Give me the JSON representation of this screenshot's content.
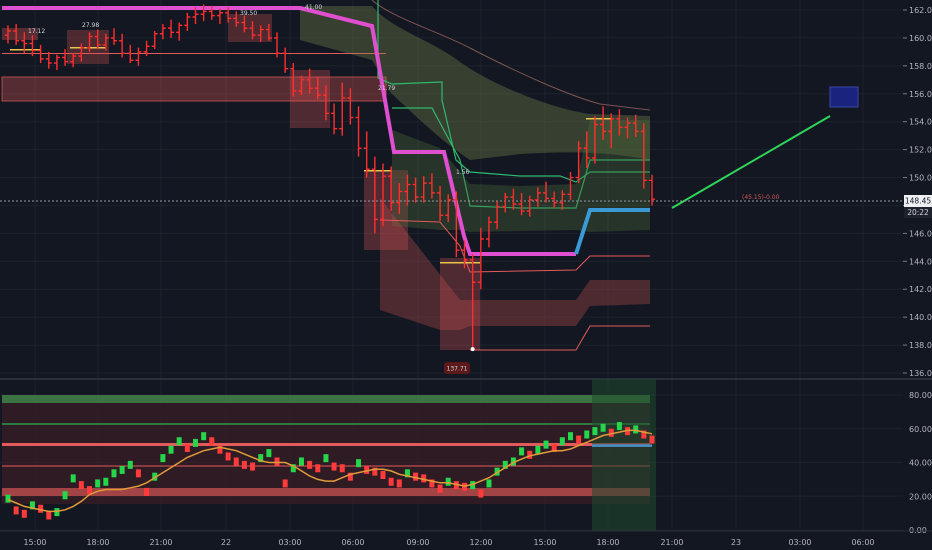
{
  "chart_data": [
    {
      "type": "candlestick",
      "panel": "price",
      "y_ticks": [
        "162.00",
        "160.00",
        "158.00",
        "156.00",
        "154.00",
        "152.00",
        "150.00",
        "148.00",
        "146.00",
        "144.00",
        "142.00",
        "140.00",
        "138.00",
        "136.00"
      ],
      "ylim": [
        136,
        162.6
      ],
      "current_price": "148.45",
      "countdown": "20:22",
      "price_line_label": "(45.15)-0.00",
      "annotations": [
        "17.12",
        "27.98",
        "39.50",
        "41.00",
        "21.79",
        "1.56",
        "137.71"
      ],
      "candles": [
        [
          160.2,
          160.9,
          159.6,
          160.5
        ],
        [
          160.5,
          161.0,
          159.5,
          159.8
        ],
        [
          159.8,
          160.4,
          158.9,
          159.6
        ],
        [
          159.6,
          160.2,
          158.7,
          159.1
        ],
        [
          159.1,
          159.5,
          158.2,
          158.5
        ],
        [
          158.5,
          159.0,
          157.8,
          158.2
        ],
        [
          158.2,
          158.8,
          157.7,
          158.6
        ],
        [
          158.6,
          159.2,
          158.0,
          158.3
        ],
        [
          158.3,
          158.9,
          157.9,
          158.7
        ],
        [
          158.7,
          159.6,
          158.3,
          159.3
        ],
        [
          159.3,
          160.4,
          159.0,
          160.1
        ],
        [
          160.1,
          160.6,
          159.2,
          159.5
        ],
        [
          159.5,
          160.3,
          159.1,
          160.0
        ],
        [
          160.0,
          160.7,
          159.5,
          159.8
        ],
        [
          159.8,
          160.3,
          158.6,
          158.9
        ],
        [
          158.9,
          159.5,
          158.2,
          158.4
        ],
        [
          158.4,
          159.3,
          158.0,
          159.0
        ],
        [
          159.0,
          159.8,
          158.7,
          159.4
        ],
        [
          159.4,
          160.5,
          159.2,
          160.3
        ],
        [
          160.3,
          161.0,
          159.9,
          160.7
        ],
        [
          160.7,
          161.3,
          160.0,
          160.4
        ],
        [
          160.4,
          161.1,
          159.8,
          160.9
        ],
        [
          160.9,
          161.8,
          160.5,
          161.5
        ],
        [
          161.5,
          162.2,
          161.0,
          161.7
        ],
        [
          161.7,
          162.4,
          161.2,
          161.9
        ],
        [
          161.9,
          162.3,
          161.3,
          161.6
        ],
        [
          161.6,
          162.1,
          161.0,
          161.8
        ],
        [
          161.8,
          162.2,
          161.1,
          161.4
        ],
        [
          161.4,
          161.9,
          160.8,
          161.1
        ],
        [
          161.1,
          161.6,
          160.4,
          160.7
        ],
        [
          160.7,
          161.2,
          159.9,
          160.2
        ],
        [
          160.2,
          160.9,
          159.7,
          160.6
        ],
        [
          160.6,
          161.0,
          159.8,
          160.0
        ],
        [
          160.0,
          160.4,
          158.6,
          158.9
        ],
        [
          158.9,
          159.3,
          157.5,
          157.8
        ],
        [
          157.8,
          158.2,
          155.8,
          156.2
        ],
        [
          156.2,
          157.3,
          155.9,
          157.0
        ],
        [
          157.0,
          157.8,
          156.0,
          156.4
        ],
        [
          156.4,
          157.2,
          155.6,
          155.9
        ],
        [
          155.9,
          156.6,
          154.1,
          154.6
        ],
        [
          154.6,
          155.3,
          153.1,
          153.5
        ],
        [
          153.5,
          156.8,
          153.0,
          155.7
        ],
        [
          155.7,
          156.4,
          153.8,
          154.3
        ],
        [
          154.3,
          155.1,
          151.5,
          152.1
        ],
        [
          152.1,
          153.3,
          150.0,
          150.6
        ],
        [
          150.6,
          151.5,
          146.0,
          147.0
        ],
        [
          147.0,
          151.0,
          146.5,
          150.1
        ],
        [
          150.1,
          150.8,
          147.6,
          148.2
        ],
        [
          148.2,
          149.6,
          147.4,
          149.0
        ],
        [
          149.0,
          150.2,
          148.0,
          149.5
        ],
        [
          149.5,
          150.0,
          148.2,
          148.6
        ],
        [
          148.6,
          150.1,
          148.2,
          149.6
        ],
        [
          149.6,
          150.3,
          148.5,
          148.9
        ],
        [
          148.9,
          149.4,
          146.9,
          147.3
        ],
        [
          147.3,
          148.8,
          146.8,
          148.4
        ],
        [
          148.4,
          149.0,
          144.3,
          144.8
        ],
        [
          144.8,
          145.5,
          143.5,
          144.1
        ],
        [
          144.1,
          144.5,
          137.71,
          142.5
        ],
        [
          142.5,
          146.4,
          142.0,
          145.6
        ],
        [
          145.6,
          147.2,
          145.0,
          146.8
        ],
        [
          146.8,
          148.3,
          146.3,
          147.9
        ],
        [
          147.9,
          148.9,
          147.5,
          148.6
        ],
        [
          148.6,
          149.2,
          147.7,
          148.1
        ],
        [
          148.1,
          148.9,
          147.3,
          147.6
        ],
        [
          147.6,
          148.7,
          147.2,
          148.4
        ],
        [
          148.4,
          149.3,
          147.9,
          148.9
        ],
        [
          148.9,
          149.7,
          148.2,
          148.5
        ],
        [
          148.5,
          149.0,
          147.8,
          148.2
        ],
        [
          148.2,
          149.1,
          147.7,
          148.8
        ],
        [
          148.8,
          150.4,
          148.4,
          150.0
        ],
        [
          150.0,
          152.6,
          149.6,
          152.1
        ],
        [
          152.1,
          153.3,
          150.7,
          151.4
        ],
        [
          151.4,
          154.4,
          151.0,
          153.8
        ],
        [
          153.8,
          155.1,
          152.7,
          153.3
        ],
        [
          153.3,
          154.6,
          152.1,
          154.2
        ],
        [
          154.2,
          154.9,
          153.0,
          153.6
        ],
        [
          153.6,
          154.3,
          152.8,
          153.9
        ],
        [
          153.9,
          154.5,
          152.9,
          153.3
        ],
        [
          153.3,
          153.9,
          149.2,
          149.8
        ],
        [
          149.8,
          150.2,
          148.0,
          148.45
        ]
      ],
      "x_ticks": [
        "15:00",
        "18:00",
        "21:00",
        "22",
        "03:00",
        "06:00",
        "09:00",
        "12:00",
        "15:00",
        "18:00",
        "21:00",
        "23",
        "03:00",
        "06:00"
      ]
    },
    {
      "type": "line",
      "panel": "oscillator",
      "y_ticks": [
        "80.00",
        "60.00",
        "40.00",
        "20.00",
        "0.00"
      ],
      "ylim": [
        0,
        85
      ],
      "series": [
        {
          "color": "#e09b3a",
          "values": [
            18,
            16,
            14,
            13,
            12,
            11,
            11,
            12,
            14,
            17,
            21,
            23,
            24,
            24,
            24,
            25,
            26,
            28,
            31,
            34,
            37,
            40,
            43,
            45,
            47,
            48,
            49,
            48,
            47,
            45,
            43,
            41,
            40,
            40,
            40,
            38,
            35,
            32,
            30,
            29,
            29,
            31,
            33,
            34,
            35,
            36,
            36,
            35,
            33,
            32,
            31,
            30,
            29,
            28,
            28,
            27,
            26,
            27,
            29,
            31,
            34,
            37,
            40,
            42,
            44,
            45,
            46,
            47,
            47,
            48,
            50,
            52,
            54,
            56,
            57,
            58,
            59,
            59,
            58,
            57
          ]
        },
        {
          "color": "#4a90c8",
          "values": [
            50,
            50,
            50,
            50,
            50
          ]
        }
      ],
      "bars": [
        18,
        11,
        9,
        14,
        12,
        8,
        10,
        20,
        30,
        26,
        23,
        27,
        28,
        33,
        35,
        38,
        33,
        22,
        31,
        42,
        47,
        52,
        48,
        51,
        55,
        52,
        47,
        43,
        40,
        38,
        37,
        42,
        45,
        40,
        27,
        36,
        40,
        38,
        36,
        42,
        37,
        36,
        31,
        39,
        35,
        34,
        32,
        28,
        27,
        33,
        31,
        30,
        27,
        24,
        28,
        26,
        25,
        26,
        21,
        27,
        34,
        38,
        40,
        46,
        44,
        47,
        50,
        48,
        52,
        55,
        53,
        56,
        58,
        60,
        57,
        61,
        58,
        59,
        56,
        53
      ]
    }
  ]
}
